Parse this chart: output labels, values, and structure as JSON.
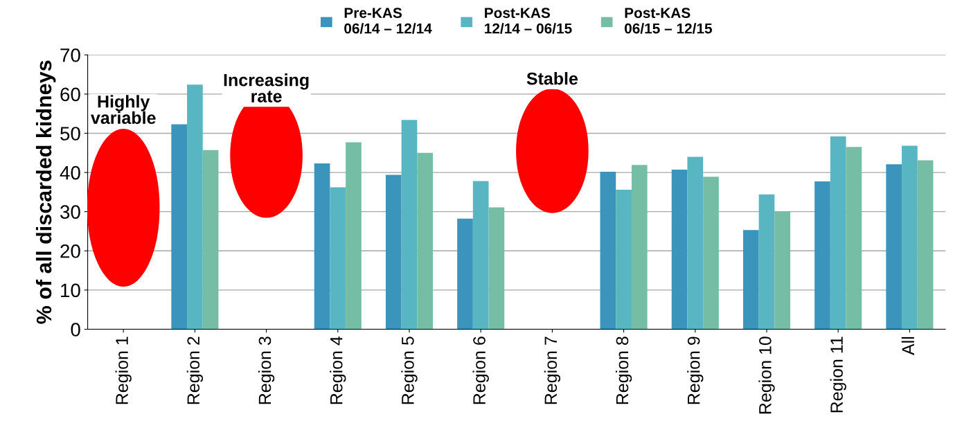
{
  "chart_data": {
    "type": "bar",
    "ylabel": "% of all discarded kidneys",
    "categories": [
      "Region 1",
      "Region 2",
      "Region 3",
      "Region 4",
      "Region 5",
      "Region 6",
      "Region 7",
      "Region 8",
      "Region 9",
      "Region 10",
      "Region 11",
      "All"
    ],
    "series": [
      {
        "name": "Pre-KAS\n06/14 – 12/14",
        "color": "#3a94bb",
        "values": [
          null,
          52.3,
          null,
          42.3,
          39.4,
          28.2,
          null,
          40.2,
          40.7,
          25.3,
          37.7,
          42.1
        ]
      },
      {
        "name": "Post-KAS\n12/14 – 06/15",
        "color": "#57b6c2",
        "values": [
          null,
          62.4,
          null,
          36.2,
          53.4,
          37.8,
          null,
          35.6,
          44.0,
          34.4,
          49.2,
          46.8
        ]
      },
      {
        "name": "Post-KAS\n06/15 – 12/15",
        "color": "#76bda5",
        "values": [
          null,
          45.7,
          null,
          47.7,
          45.0,
          31.1,
          null,
          41.9,
          38.9,
          30.1,
          46.5,
          43.1
        ]
      }
    ],
    "annotations": [
      "Highly variable",
      "Increasing rate",
      "Stable"
    ],
    "ylim": [
      0,
      70
    ],
    "yticks": [
      0,
      10,
      20,
      30,
      40,
      50,
      60,
      70
    ],
    "grid": "y",
    "legend": "top"
  }
}
